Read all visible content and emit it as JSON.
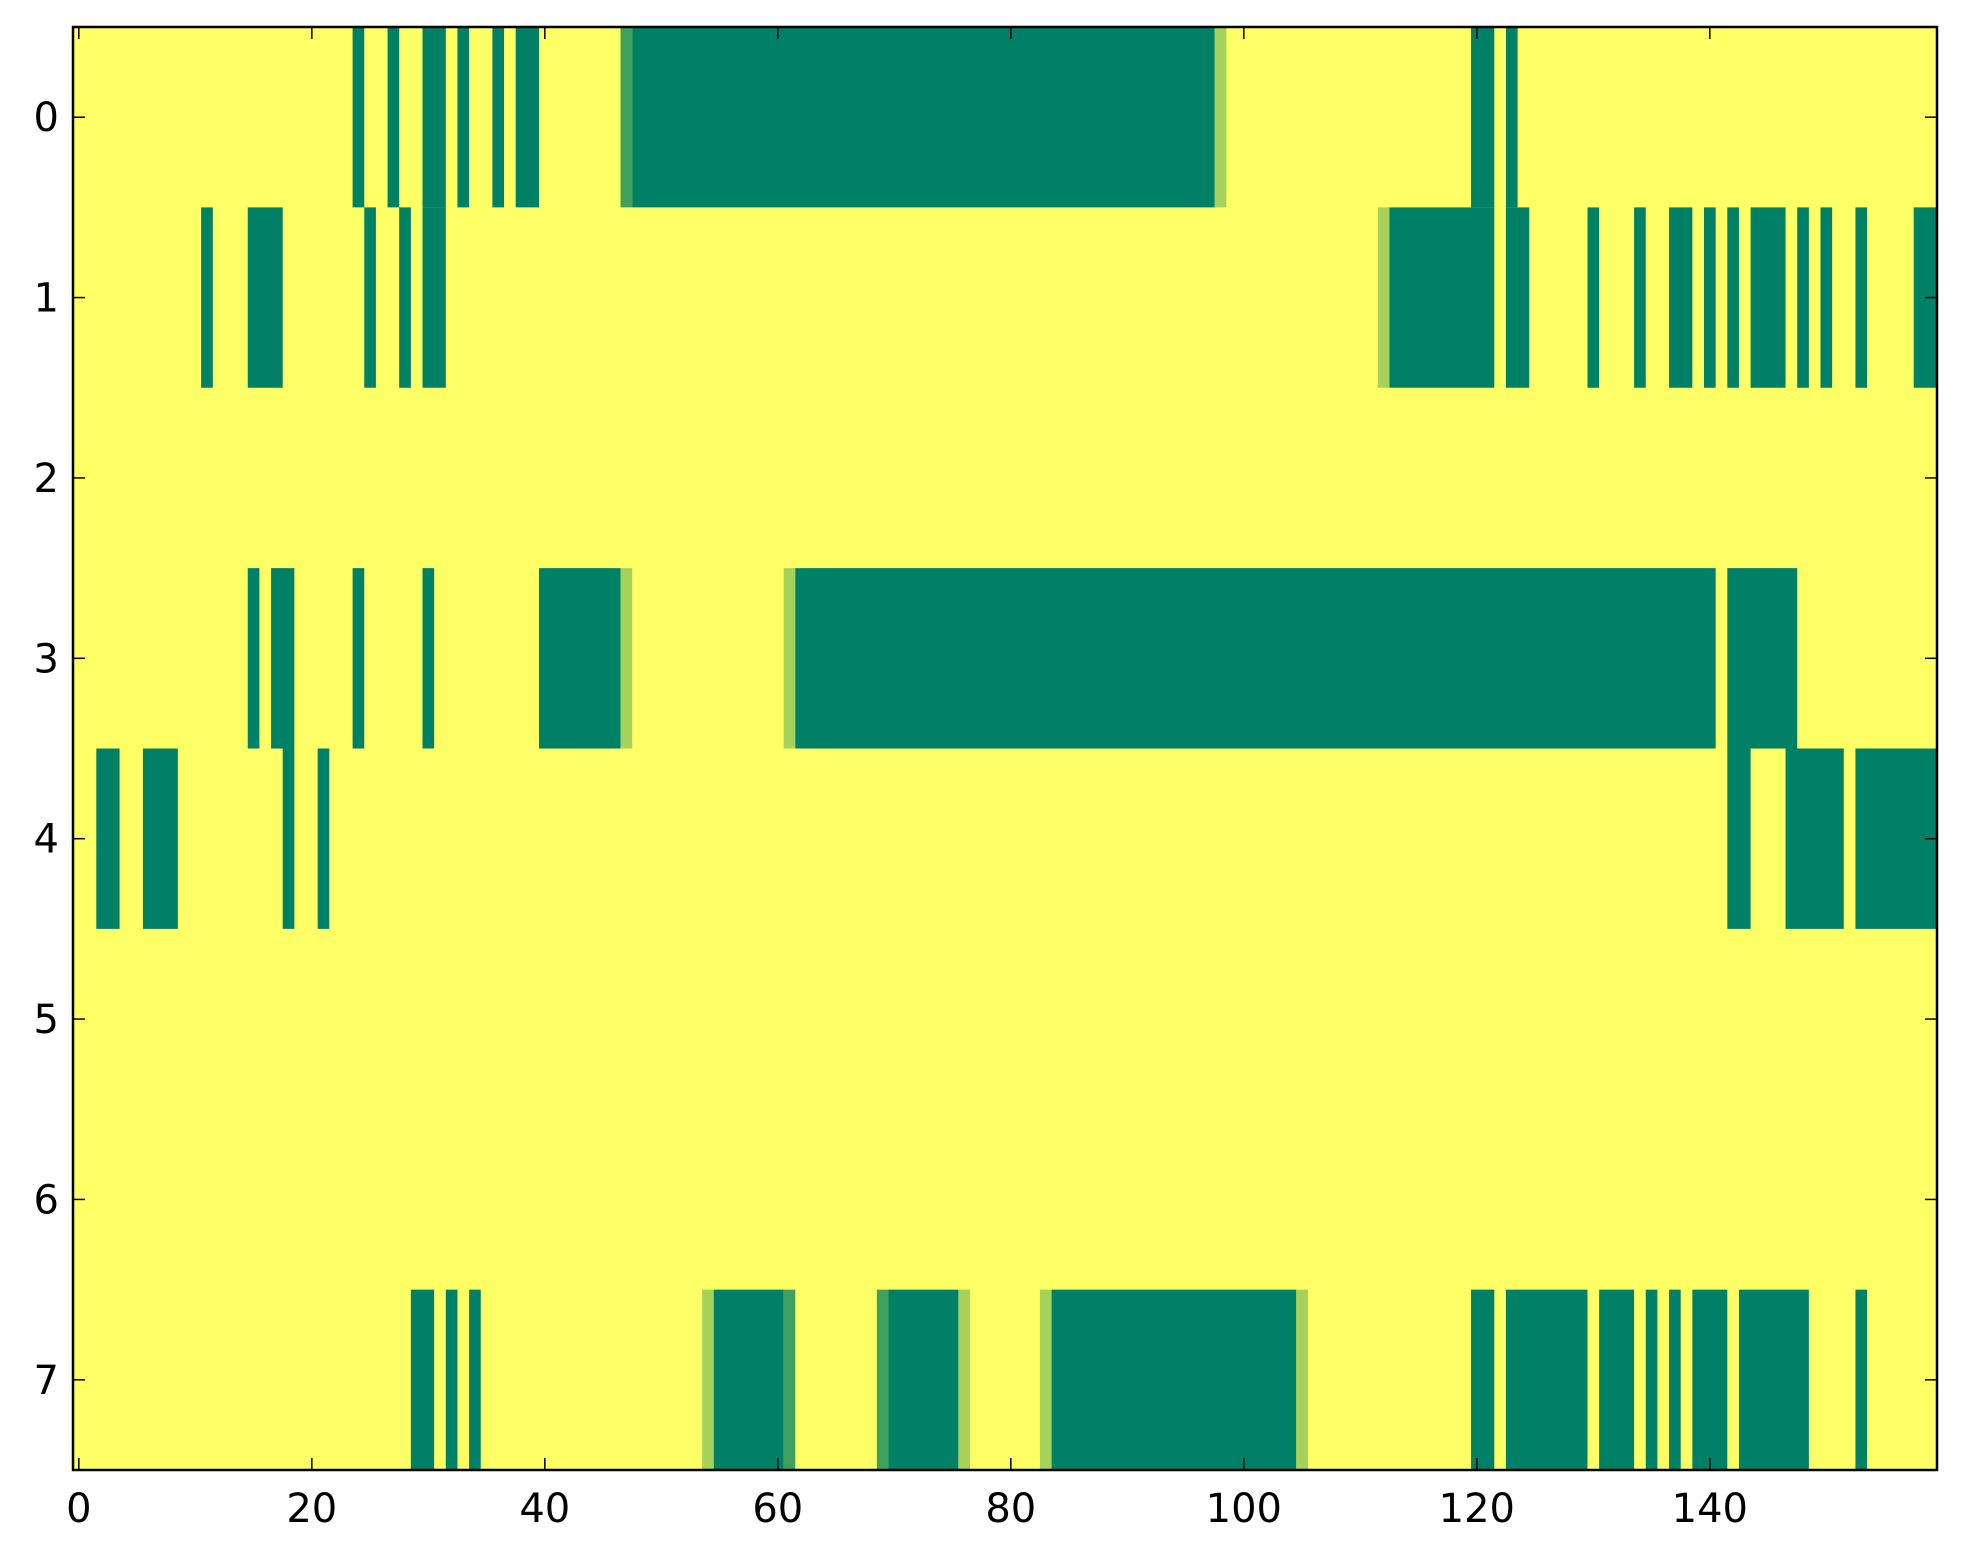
{
  "chart_data": {
    "type": "heatmap",
    "title": "",
    "xlabel": "",
    "ylabel": "",
    "xlim": [
      -0.5,
      159.5
    ],
    "ylim": [
      7.5,
      -0.5
    ],
    "grid": false,
    "colors": {
      "background": "#ffff66",
      "dark": "#008066",
      "light": "#a6d15a",
      "medium": "#40a05e"
    },
    "x_ticks": [
      0,
      20,
      40,
      60,
      80,
      100,
      120,
      140
    ],
    "y_ticks": [
      0,
      1,
      2,
      3,
      4,
      5,
      6,
      7
    ],
    "x_tick_labels": [
      "0",
      "20",
      "40",
      "60",
      "80",
      "100",
      "120",
      "140"
    ],
    "y_tick_labels": [
      "0",
      "1",
      "2",
      "3",
      "4",
      "5",
      "6",
      "7"
    ],
    "rows": [
      {
        "row": 0,
        "segments": [
          {
            "start": 24,
            "end": 24,
            "level": "dark"
          },
          {
            "start": 27,
            "end": 27,
            "level": "dark"
          },
          {
            "start": 30,
            "end": 31,
            "level": "dark"
          },
          {
            "start": 33,
            "end": 33,
            "level": "dark"
          },
          {
            "start": 36,
            "end": 36,
            "level": "dark"
          },
          {
            "start": 38,
            "end": 39,
            "level": "dark"
          },
          {
            "start": 47,
            "end": 47,
            "level": "medium"
          },
          {
            "start": 48,
            "end": 97,
            "level": "dark"
          },
          {
            "start": 98,
            "end": 98,
            "level": "light"
          },
          {
            "start": 120,
            "end": 121,
            "level": "dark"
          },
          {
            "start": 123,
            "end": 123,
            "level": "dark"
          }
        ]
      },
      {
        "row": 1,
        "segments": [
          {
            "start": 11,
            "end": 11,
            "level": "dark"
          },
          {
            "start": 15,
            "end": 17,
            "level": "dark"
          },
          {
            "start": 25,
            "end": 25,
            "level": "dark"
          },
          {
            "start": 28,
            "end": 28,
            "level": "dark"
          },
          {
            "start": 30,
            "end": 31,
            "level": "dark"
          },
          {
            "start": 112,
            "end": 112,
            "level": "light"
          },
          {
            "start": 113,
            "end": 121,
            "level": "dark"
          },
          {
            "start": 123,
            "end": 124,
            "level": "dark"
          },
          {
            "start": 130,
            "end": 130,
            "level": "dark"
          },
          {
            "start": 134,
            "end": 134,
            "level": "dark"
          },
          {
            "start": 137,
            "end": 138,
            "level": "dark"
          },
          {
            "start": 140,
            "end": 140,
            "level": "dark"
          },
          {
            "start": 142,
            "end": 142,
            "level": "dark"
          },
          {
            "start": 144,
            "end": 146,
            "level": "dark"
          },
          {
            "start": 148,
            "end": 148,
            "level": "dark"
          },
          {
            "start": 150,
            "end": 150,
            "level": "dark"
          },
          {
            "start": 153,
            "end": 153,
            "level": "dark"
          },
          {
            "start": 158,
            "end": 159,
            "level": "dark"
          }
        ]
      },
      {
        "row": 2,
        "segments": []
      },
      {
        "row": 3,
        "segments": [
          {
            "start": 15,
            "end": 15,
            "level": "dark"
          },
          {
            "start": 17,
            "end": 18,
            "level": "dark"
          },
          {
            "start": 24,
            "end": 24,
            "level": "dark"
          },
          {
            "start": 30,
            "end": 30,
            "level": "dark"
          },
          {
            "start": 40,
            "end": 46,
            "level": "dark"
          },
          {
            "start": 47,
            "end": 47,
            "level": "light"
          },
          {
            "start": 61,
            "end": 61,
            "level": "light"
          },
          {
            "start": 62,
            "end": 140,
            "level": "dark"
          },
          {
            "start": 142,
            "end": 147,
            "level": "dark"
          }
        ]
      },
      {
        "row": 4,
        "segments": [
          {
            "start": 2,
            "end": 3,
            "level": "dark"
          },
          {
            "start": 6,
            "end": 8,
            "level": "dark"
          },
          {
            "start": 18,
            "end": 18,
            "level": "dark"
          },
          {
            "start": 21,
            "end": 21,
            "level": "dark"
          },
          {
            "start": 142,
            "end": 143,
            "level": "dark"
          },
          {
            "start": 147,
            "end": 151,
            "level": "dark"
          },
          {
            "start": 153,
            "end": 159,
            "level": "dark"
          }
        ]
      },
      {
        "row": 5,
        "segments": []
      },
      {
        "row": 6,
        "segments": []
      },
      {
        "row": 7,
        "segments": [
          {
            "start": 29,
            "end": 30,
            "level": "dark"
          },
          {
            "start": 32,
            "end": 32,
            "level": "dark"
          },
          {
            "start": 34,
            "end": 34,
            "level": "dark"
          },
          {
            "start": 54,
            "end": 54,
            "level": "light"
          },
          {
            "start": 55,
            "end": 60,
            "level": "dark"
          },
          {
            "start": 61,
            "end": 61,
            "level": "medium"
          },
          {
            "start": 69,
            "end": 69,
            "level": "medium"
          },
          {
            "start": 70,
            "end": 75,
            "level": "dark"
          },
          {
            "start": 76,
            "end": 76,
            "level": "light"
          },
          {
            "start": 83,
            "end": 83,
            "level": "light"
          },
          {
            "start": 84,
            "end": 104,
            "level": "dark"
          },
          {
            "start": 105,
            "end": 105,
            "level": "light"
          },
          {
            "start": 120,
            "end": 121,
            "level": "dark"
          },
          {
            "start": 123,
            "end": 129,
            "level": "dark"
          },
          {
            "start": 131,
            "end": 133,
            "level": "dark"
          },
          {
            "start": 135,
            "end": 135,
            "level": "dark"
          },
          {
            "start": 137,
            "end": 137,
            "level": "dark"
          },
          {
            "start": 139,
            "end": 141,
            "level": "dark"
          },
          {
            "start": 143,
            "end": 148,
            "level": "dark"
          },
          {
            "start": 153,
            "end": 153,
            "level": "dark"
          }
        ]
      }
    ]
  }
}
